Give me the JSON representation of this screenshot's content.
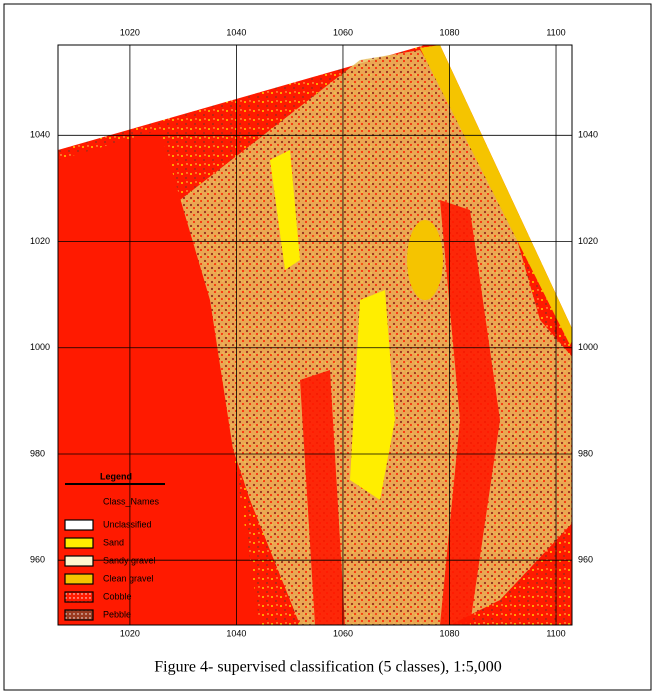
{
  "map": {
    "xlim": [
      1006.5,
      1103
    ],
    "ylim": [
      947.8,
      1057
    ],
    "xticks": [
      1020,
      1040,
      1060,
      1080,
      1100
    ],
    "yticks": [
      960,
      980,
      1000,
      1020,
      1040
    ],
    "legend": {
      "title": "Legend",
      "subtitle": "Class_Names",
      "classes": [
        {
          "name": "Unclassified",
          "color": "#ffffff"
        },
        {
          "name": "Sand",
          "color": "#ffee00"
        },
        {
          "name": "Sandy gravel",
          "color": "#fff6d0"
        },
        {
          "name": "Clean gravel",
          "color": "#f5c400"
        },
        {
          "name": "Cobble",
          "color": "#ff1a00"
        },
        {
          "name": "Pebble",
          "color": "#9a3a20"
        }
      ]
    },
    "caption": "Figure 4- supervised classification (5 classes), 1:5,000"
  }
}
